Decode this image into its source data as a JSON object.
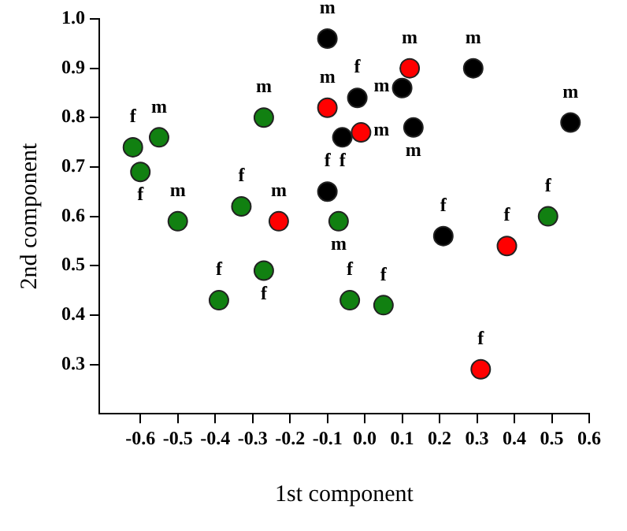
{
  "chart_data": {
    "type": "scatter",
    "xlabel": "1st component",
    "ylabel": "2nd component",
    "xlim": [
      -0.71,
      0.6
    ],
    "xticks": [
      -0.6,
      -0.5,
      -0.4,
      -0.3,
      -0.2,
      -0.1,
      {
        "value": 0,
        "label": "0.0"
      },
      0.1,
      0.2,
      0.3,
      0.4,
      0.5,
      0.6
    ],
    "ylim": [
      0.2,
      1.0
    ],
    "yticks": [
      0.3,
      0.4,
      0.5,
      0.6,
      0.7,
      0.8,
      0.9,
      {
        "value": 1,
        "label": "1.0"
      }
    ],
    "grid": false,
    "legend": false,
    "marker": "circle",
    "series": [
      {
        "color": "#118011",
        "x": [
          -0.62,
          -0.6,
          -0.55,
          -0.5,
          -0.27,
          -0.33,
          -0.27,
          -0.39,
          -0.07,
          -0.04,
          0.05,
          0.49
        ],
        "values": [
          0.74,
          0.69,
          0.76,
          0.59,
          0.8,
          0.62,
          0.49,
          0.43,
          0.59,
          0.43,
          0.42,
          0.6
        ]
      },
      {
        "color": "#ff0000",
        "x": [
          -0.23,
          -0.1,
          -0.01,
          0.12,
          0.38,
          0.31
        ],
        "values": [
          0.59,
          0.82,
          0.77,
          0.9,
          0.54,
          0.29
        ]
      },
      {
        "color": "#000000",
        "x": [
          -0.1,
          -0.06,
          -0.1,
          -0.02,
          0.1,
          0.13,
          0.29,
          0.55,
          0.21
        ],
        "values": [
          0.96,
          0.76,
          0.65,
          0.84,
          0.86,
          0.78,
          0.9,
          0.79,
          0.56
        ]
      }
    ],
    "annotations": [
      {
        "text": "f",
        "x": -0.62,
        "y": 0.74
      },
      {
        "text": "f",
        "x": -0.6,
        "y": 0.69
      },
      {
        "text": "m",
        "x": -0.55,
        "y": 0.76
      },
      {
        "text": "m",
        "x": -0.5,
        "y": 0.59
      },
      {
        "text": "m",
        "x": -0.27,
        "y": 0.8
      },
      {
        "text": "f",
        "x": -0.33,
        "y": 0.62
      },
      {
        "text": "f",
        "x": -0.27,
        "y": 0.49
      },
      {
        "text": "f",
        "x": -0.39,
        "y": 0.43
      },
      {
        "text": "m",
        "x": -0.07,
        "y": 0.59
      },
      {
        "text": "f",
        "x": -0.04,
        "y": 0.43
      },
      {
        "text": "f",
        "x": 0.05,
        "y": 0.42
      },
      {
        "text": "f",
        "x": 0.49,
        "y": 0.6
      },
      {
        "text": "m",
        "x": -0.23,
        "y": 0.59
      },
      {
        "text": "m",
        "x": -0.1,
        "y": 0.82
      },
      {
        "text": "m",
        "x": -0.01,
        "y": 0.77
      },
      {
        "text": "m",
        "x": 0.12,
        "y": 0.9
      },
      {
        "text": "f",
        "x": 0.38,
        "y": 0.54
      },
      {
        "text": "f",
        "x": 0.31,
        "y": 0.29
      },
      {
        "text": "m",
        "x": -0.1,
        "y": 0.96
      },
      {
        "text": "f",
        "x": -0.06,
        "y": 0.76
      },
      {
        "text": "f",
        "x": -0.1,
        "y": 0.65
      },
      {
        "text": "f",
        "x": -0.02,
        "y": 0.84
      },
      {
        "text": "m",
        "x": 0.1,
        "y": 0.86
      },
      {
        "text": "m",
        "x": 0.13,
        "y": 0.78
      },
      {
        "text": "m",
        "x": 0.29,
        "y": 0.9
      },
      {
        "text": "m",
        "x": 0.55,
        "y": 0.79
      },
      {
        "text": "f",
        "x": 0.21,
        "y": 0.56
      }
    ]
  }
}
